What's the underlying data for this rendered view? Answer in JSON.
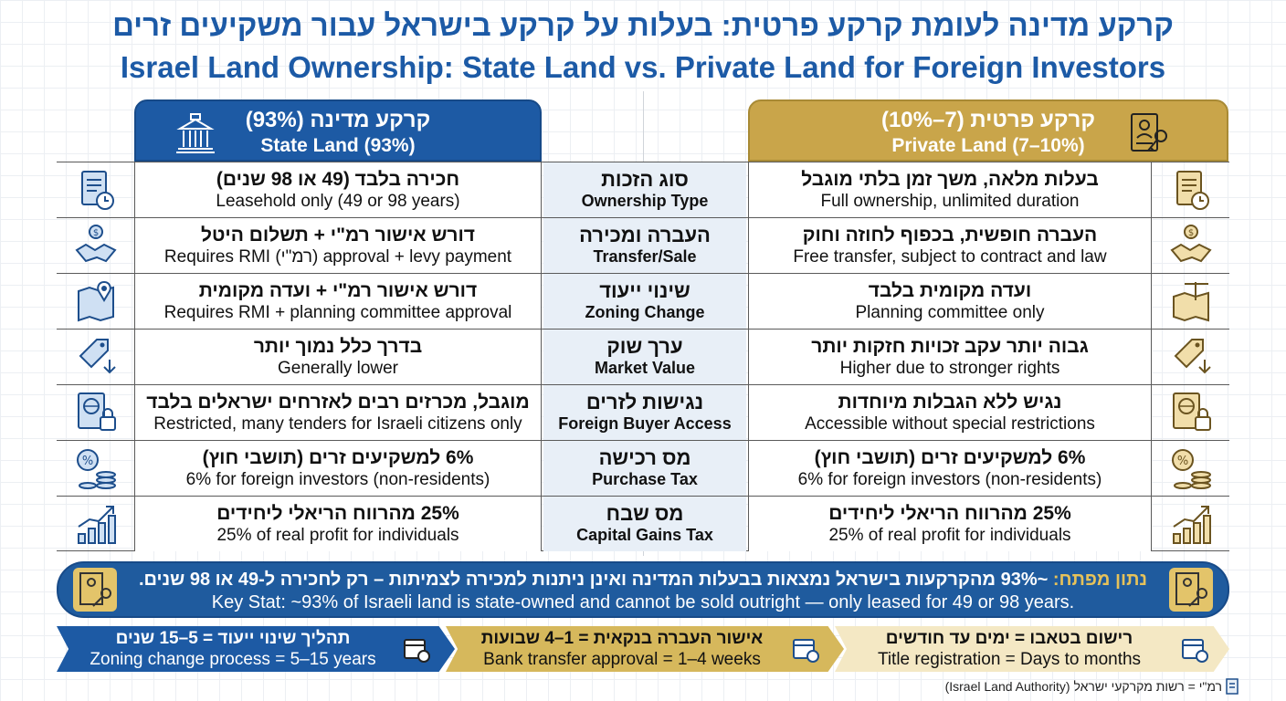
{
  "title": {
    "he": "קרקע מדינה לעומת קרקע פרטית: בעלות על קרקע בישראל עבור משקיעים זרים",
    "en": "Israel Land Ownership: State Land vs. Private Land for Foreign Investors"
  },
  "headers": {
    "state": {
      "he": "קרקע מדינה (93%)",
      "en": "State Land (93%)",
      "icon": "government-building-icon"
    },
    "private": {
      "he": "קרקע פרטית (7–10%)",
      "en": "Private Land (7–10%)",
      "icon": "deed-key-icon"
    }
  },
  "rows": [
    {
      "icon": "document-clock-icon",
      "category": {
        "he": "סוג הזכות",
        "en": "Ownership Type"
      },
      "state": {
        "he": "חכירה בלבד (49 או 98 שנים)",
        "en": "Leasehold only (49 or 98 years)"
      },
      "private": {
        "he": "בעלות מלאה, משך זמן בלתי מוגבל",
        "en": "Full ownership, unlimited duration"
      }
    },
    {
      "icon": "handshake-coin-icon",
      "category": {
        "he": "העברה ומכירה",
        "en": "Transfer/Sale"
      },
      "state": {
        "he": "דורש אישור רמ\"י + תשלום היטל",
        "en": "Requires RMI (רמ\"י) approval + levy payment"
      },
      "private": {
        "he": "העברה חופשית, בכפוף לחוזה וחוק",
        "en": "Free transfer, subject to contract and law"
      }
    },
    {
      "icon": "map-pin-icon",
      "category": {
        "he": "שינוי ייעוד",
        "en": "Zoning Change"
      },
      "state": {
        "he": "דורש אישור רמ\"י + ועדה מקומית",
        "en": "Requires RMI + planning committee approval"
      },
      "private": {
        "he": "ועדה מקומית בלבד",
        "en": "Planning committee only"
      }
    },
    {
      "icon": "price-tag-down-icon",
      "category": {
        "he": "ערך שוק",
        "en": "Market Value"
      },
      "state": {
        "he": "בדרך כלל נמוך יותר",
        "en": "Generally lower"
      },
      "private": {
        "he": "גבוה יותר עקב זכויות חזקות יותר",
        "en": "Higher due to stronger rights"
      }
    },
    {
      "icon": "passport-lock-icon",
      "category": {
        "he": "נגישות לזרים",
        "en": "Foreign Buyer Access"
      },
      "state": {
        "he": "מוגבל, מכרזים רבים לאזרחים ישראלים בלבד",
        "en": "Restricted, many tenders for Israeli citizens only"
      },
      "private": {
        "he": "נגיש ללא הגבלות מיוחדות",
        "en": "Accessible without special restrictions"
      }
    },
    {
      "icon": "percent-coins-icon",
      "category": {
        "he": "מס רכישה",
        "en": "Purchase Tax"
      },
      "state": {
        "he": "6% למשקיעים זרים (תושבי חוץ)",
        "en": "6% for foreign investors (non-residents)"
      },
      "private": {
        "he": "6% למשקיעים זרים (תושבי חוץ)",
        "en": "6% for foreign investors (non-residents)"
      }
    },
    {
      "icon": "growth-chart-icon",
      "category": {
        "he": "מס שבח",
        "en": "Capital Gains Tax"
      },
      "state": {
        "he": "25% מהרווח הריאלי ליחידים",
        "en": "25% of real profit for individuals"
      },
      "private": {
        "he": "25% מהרווח הריאלי ליחידים",
        "en": "25% of real profit for individuals"
      }
    }
  ],
  "keystat": {
    "he_lead": "נתון מפתח:",
    "he_text": "~93% מהקרקעות בישראל נמצאות בבעלות המדינה ואינן ניתנות למכירה לצמיתות – רק לחכירה ל-49 או 98 שנים.",
    "en": "Key Stat: ~93% of Israeli land is state-owned and cannot be sold outright — only leased for 49 or 98 years."
  },
  "timeline": [
    {
      "he": "תהליך שינוי ייעוד = 5–15 שנים",
      "en": "Zoning change process = 5–15 years",
      "icon": "calendar-icon"
    },
    {
      "he": "אישור העברה בנקאית = 1–4 שבועות",
      "en": "Bank transfer approval = 1–4 weeks",
      "icon": "calendar-icon"
    },
    {
      "he": "רישום בטאבו = ימים עד חודשים",
      "en": "Title registration = Days to months",
      "icon": "calendar-icon"
    }
  ],
  "footnote": "רמ\"י = רשות מקרקעי ישראל (Israel Land Authority)",
  "colors": {
    "blue": "#1d5aa4",
    "gold": "#c9a54a",
    "category_bg": "#e8eff7"
  }
}
